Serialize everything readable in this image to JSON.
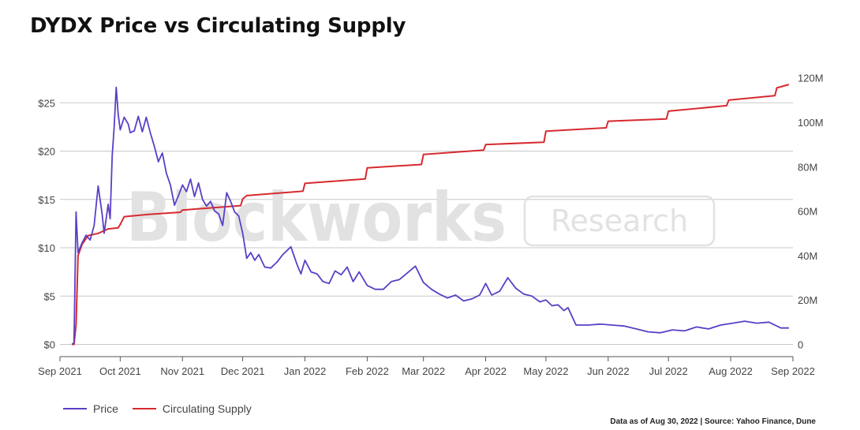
{
  "title": "DYDX Price vs Circulating Supply",
  "watermark": {
    "brand": "Blockworks",
    "badge": "Research"
  },
  "source_note": "Data as of Aug 30, 2022 | Source: Yahoo Finance, Dune",
  "colors": {
    "price": "#5b3fc6",
    "supply": "#d62a30",
    "grid": "#c8c8c8",
    "watermark": "#e2e2e2"
  },
  "chart_data": {
    "type": "line",
    "title": "DYDX Price vs Circulating Supply",
    "x_ticks": [
      "Sep 2021",
      "Oct 2021",
      "Nov 2021",
      "Dec 2021",
      "Jan 2022",
      "Feb 2022",
      "Mar 2022",
      "Apr 2022",
      "May 2022",
      "Jun 2022",
      "Jul 2022",
      "Aug 2022",
      "Sep 2022"
    ],
    "y_left": {
      "ticks": [
        "$0",
        "$5",
        "$10",
        "$15",
        "$20",
        "$25"
      ],
      "min": 0,
      "max": 27.5
    },
    "y_right": {
      "ticks": [
        "0",
        "20M",
        "40M",
        "60M",
        "80M",
        "100M",
        "120M"
      ],
      "min": 0,
      "max": 124000000
    },
    "legend": {
      "placement": "bottom-left",
      "entries": [
        "Price",
        "Circulating Supply"
      ]
    },
    "grid": true,
    "series": [
      {
        "name": "Price",
        "axis": "left",
        "x": [
          "2021-09-07",
          "2021-09-08",
          "2021-09-09",
          "2021-09-10",
          "2021-09-12",
          "2021-09-14",
          "2021-09-16",
          "2021-09-18",
          "2021-09-20",
          "2021-09-22",
          "2021-09-23",
          "2021-09-25",
          "2021-09-26",
          "2021-09-27",
          "2021-09-28",
          "2021-09-29",
          "2021-09-30",
          "2021-10-01",
          "2021-10-03",
          "2021-10-05",
          "2021-10-06",
          "2021-10-08",
          "2021-10-10",
          "2021-10-12",
          "2021-10-14",
          "2021-10-16",
          "2021-10-18",
          "2021-10-20",
          "2021-10-22",
          "2021-10-24",
          "2021-10-26",
          "2021-10-28",
          "2021-10-30",
          "2021-11-01",
          "2021-11-03",
          "2021-11-05",
          "2021-11-07",
          "2021-11-09",
          "2021-11-11",
          "2021-11-13",
          "2021-11-15",
          "2021-11-17",
          "2021-11-19",
          "2021-11-21",
          "2021-11-23",
          "2021-11-25",
          "2021-11-27",
          "2021-11-29",
          "2021-12-01",
          "2021-12-03",
          "2021-12-05",
          "2021-12-07",
          "2021-12-09",
          "2021-12-12",
          "2021-12-15",
          "2021-12-18",
          "2021-12-21",
          "2021-12-25",
          "2021-12-28",
          "2021-12-30",
          "2022-01-01",
          "2022-01-04",
          "2022-01-07",
          "2022-01-10",
          "2022-01-13",
          "2022-01-16",
          "2022-01-19",
          "2022-01-22",
          "2022-01-25",
          "2022-01-28",
          "2022-02-01",
          "2022-02-05",
          "2022-02-09",
          "2022-02-13",
          "2022-02-17",
          "2022-02-21",
          "2022-02-25",
          "2022-03-01",
          "2022-03-05",
          "2022-03-09",
          "2022-03-13",
          "2022-03-17",
          "2022-03-21",
          "2022-03-25",
          "2022-03-29",
          "2022-04-01",
          "2022-04-04",
          "2022-04-08",
          "2022-04-12",
          "2022-04-16",
          "2022-04-20",
          "2022-04-24",
          "2022-04-28",
          "2022-05-01",
          "2022-05-04",
          "2022-05-07",
          "2022-05-10",
          "2022-05-12",
          "2022-05-16",
          "2022-05-22",
          "2022-05-28",
          "2022-06-03",
          "2022-06-09",
          "2022-06-15",
          "2022-06-21",
          "2022-06-27",
          "2022-07-03",
          "2022-07-09",
          "2022-07-15",
          "2022-07-21",
          "2022-07-27",
          "2022-08-02",
          "2022-08-08",
          "2022-08-14",
          "2022-08-20",
          "2022-08-26",
          "2022-08-30"
        ],
        "values": [
          0,
          0.2,
          13.7,
          9.5,
          10.5,
          11.3,
          10.8,
          12.3,
          16.4,
          13.5,
          11.5,
          14.5,
          13.0,
          19.5,
          22.5,
          26.6,
          23.8,
          22.2,
          23.5,
          22.8,
          21.9,
          22.1,
          23.6,
          22.0,
          23.5,
          21.9,
          20.5,
          18.9,
          19.8,
          17.7,
          16.5,
          14.4,
          15.4,
          16.5,
          15.8,
          17.1,
          15.3,
          16.7,
          15.0,
          14.3,
          14.8,
          13.8,
          13.5,
          12.3,
          15.7,
          14.8,
          13.7,
          13.3,
          11.5,
          8.9,
          9.5,
          8.7,
          9.3,
          8.0,
          7.9,
          8.5,
          9.3,
          10.1,
          8.3,
          7.3,
          8.7,
          7.5,
          7.3,
          6.5,
          6.3,
          7.6,
          7.2,
          8.0,
          6.5,
          7.5,
          6.1,
          5.7,
          5.7,
          6.5,
          6.7,
          7.4,
          8.1,
          6.4,
          5.7,
          5.2,
          4.8,
          5.1,
          4.5,
          4.7,
          5.1,
          6.3,
          5.1,
          5.5,
          6.9,
          5.8,
          5.2,
          5.0,
          4.4,
          4.6,
          4.0,
          4.1,
          3.5,
          3.8,
          2.0,
          2.0,
          2.1,
          2.0,
          1.9,
          1.6,
          1.3,
          1.2,
          1.5,
          1.4,
          1.8,
          1.6,
          2.0,
          2.2,
          2.4,
          2.2,
          2.3,
          1.7,
          1.7
        ]
      },
      {
        "name": "Circulating Supply",
        "axis": "right",
        "x": [
          "2021-09-07",
          "2021-09-08",
          "2021-09-09",
          "2021-09-10",
          "2021-09-12",
          "2021-09-15",
          "2021-09-20",
          "2021-09-25",
          "2021-09-30",
          "2021-10-01",
          "2021-10-03",
          "2021-10-15",
          "2021-10-31",
          "2021-11-01",
          "2021-11-30",
          "2021-12-01",
          "2021-12-03",
          "2021-12-31",
          "2022-01-01",
          "2022-01-31",
          "2022-02-01",
          "2022-02-28",
          "2022-03-01",
          "2022-03-31",
          "2022-04-01",
          "2022-04-30",
          "2022-05-01",
          "2022-05-31",
          "2022-06-01",
          "2022-06-30",
          "2022-07-01",
          "2022-07-30",
          "2022-07-31",
          "2022-08-23",
          "2022-08-24",
          "2022-08-30"
        ],
        "values": [
          0,
          0,
          9000000,
          40000000,
          45000000,
          49000000,
          50000000,
          52000000,
          52500000,
          54000000,
          57500000,
          58500000,
          59500000,
          60500000,
          62500000,
          65500000,
          67000000,
          69000000,
          72500000,
          74500000,
          79500000,
          81000000,
          85500000,
          87500000,
          90000000,
          91000000,
          96000000,
          97500000,
          100500000,
          101500000,
          105000000,
          107500000,
          110000000,
          112000000,
          115500000,
          117000000
        ]
      }
    ]
  }
}
